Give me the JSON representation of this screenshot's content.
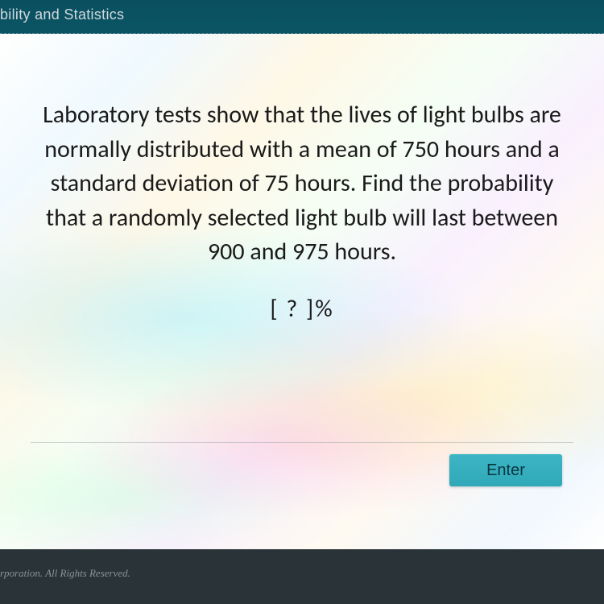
{
  "header": {
    "title_fragment": "bility and Statistics",
    "background_color": "#0a5565",
    "text_color": "#d0d8dc"
  },
  "problem": {
    "text": "Laboratory tests show that the lives of light bulbs are normally distributed with a mean of 750 hours and a standard deviation of 75 hours.  Find the probability that a randomly selected light bulb will last between 900 and 975 hours.",
    "answer_template": "[  ?  ]%",
    "font_size_pt": 22,
    "text_color": "#1a1a1a",
    "text_align": "center"
  },
  "controls": {
    "enter_button_label": "Enter",
    "button_background": "#35afc0",
    "button_text_color": "#0a3540"
  },
  "footer": {
    "text_fragment": "rporation.  All Rights Reserved.",
    "background_color": "#2a3438",
    "text_color": "#8a9298"
  },
  "panel": {
    "grid_color": "rgba(180,190,200,0.15)",
    "base_background": "#f6f6f2",
    "moire_colors": [
      "#c8f0ff",
      "#fff2c0",
      "#ffd0e8",
      "#d0ffda"
    ]
  }
}
